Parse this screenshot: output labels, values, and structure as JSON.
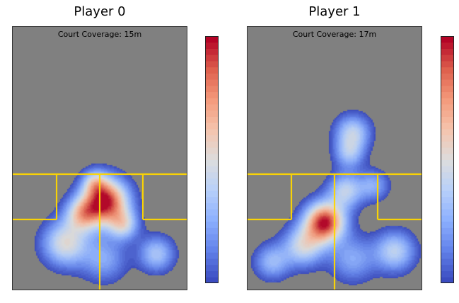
{
  "chart_data": [
    {
      "type": "heatmap",
      "title": "Player 0",
      "annotation": "Court Coverage: 15m",
      "colormap": "coolwarm",
      "court": {
        "background": "#808080",
        "line_color": "#ffd700"
      },
      "hotspots": [
        {
          "x": 0.53,
          "y": 0.66,
          "weight": 1.0,
          "spread": 0.09
        },
        {
          "x": 0.4,
          "y": 0.71,
          "weight": 0.55,
          "spread": 0.07
        },
        {
          "x": 0.63,
          "y": 0.75,
          "weight": 0.45,
          "spread": 0.06
        },
        {
          "x": 0.3,
          "y": 0.82,
          "weight": 0.55,
          "spread": 0.09
        },
        {
          "x": 0.47,
          "y": 0.59,
          "weight": 0.35,
          "spread": 0.05
        },
        {
          "x": 0.82,
          "y": 0.86,
          "weight": 0.4,
          "spread": 0.07
        },
        {
          "x": 0.52,
          "y": 0.88,
          "weight": 0.3,
          "spread": 0.09
        }
      ]
    },
    {
      "type": "heatmap",
      "title": "Player 1",
      "annotation": "Court Coverage: 17m",
      "colormap": "coolwarm",
      "court": {
        "background": "#808080",
        "line_color": "#ffd700"
      },
      "hotspots": [
        {
          "x": 0.44,
          "y": 0.74,
          "weight": 1.0,
          "spread": 0.08
        },
        {
          "x": 0.32,
          "y": 0.83,
          "weight": 0.5,
          "spread": 0.08
        },
        {
          "x": 0.56,
          "y": 0.62,
          "weight": 0.45,
          "spread": 0.07
        },
        {
          "x": 0.6,
          "y": 0.4,
          "weight": 0.45,
          "spread": 0.07
        },
        {
          "x": 0.58,
          "y": 0.48,
          "weight": 0.35,
          "spread": 0.06
        },
        {
          "x": 0.72,
          "y": 0.6,
          "weight": 0.3,
          "spread": 0.06
        },
        {
          "x": 0.84,
          "y": 0.85,
          "weight": 0.45,
          "spread": 0.08
        },
        {
          "x": 0.14,
          "y": 0.89,
          "weight": 0.35,
          "spread": 0.07
        },
        {
          "x": 0.6,
          "y": 0.88,
          "weight": 0.3,
          "spread": 0.09
        }
      ]
    }
  ]
}
